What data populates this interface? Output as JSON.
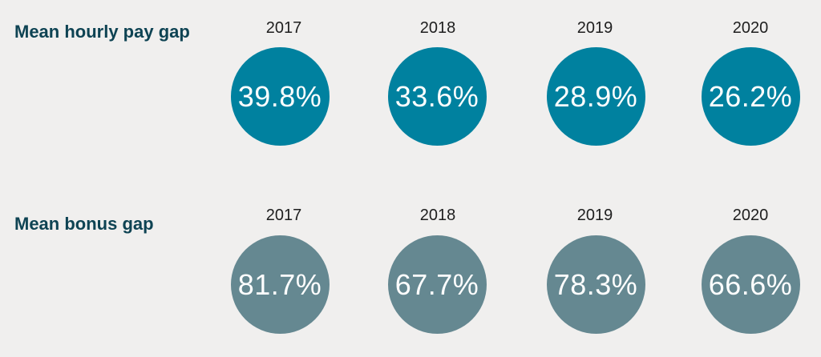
{
  "chart_data": [
    {
      "type": "table",
      "title": "Mean hourly pay gap",
      "color": "#00819f",
      "categories": [
        "2017",
        "2018",
        "2019",
        "2020"
      ],
      "values": [
        39.8,
        33.6,
        28.9,
        26.2
      ],
      "labels": [
        "39.8%",
        "33.6%",
        "28.9%",
        "26.2%"
      ]
    },
    {
      "type": "table",
      "title": "Mean bonus gap",
      "color": "#658891",
      "categories": [
        "2017",
        "2018",
        "2019",
        "2020"
      ],
      "values": [
        81.7,
        67.7,
        78.3,
        66.6
      ],
      "labels": [
        "81.7%",
        "67.7%",
        "78.3%",
        "66.6%"
      ]
    }
  ]
}
